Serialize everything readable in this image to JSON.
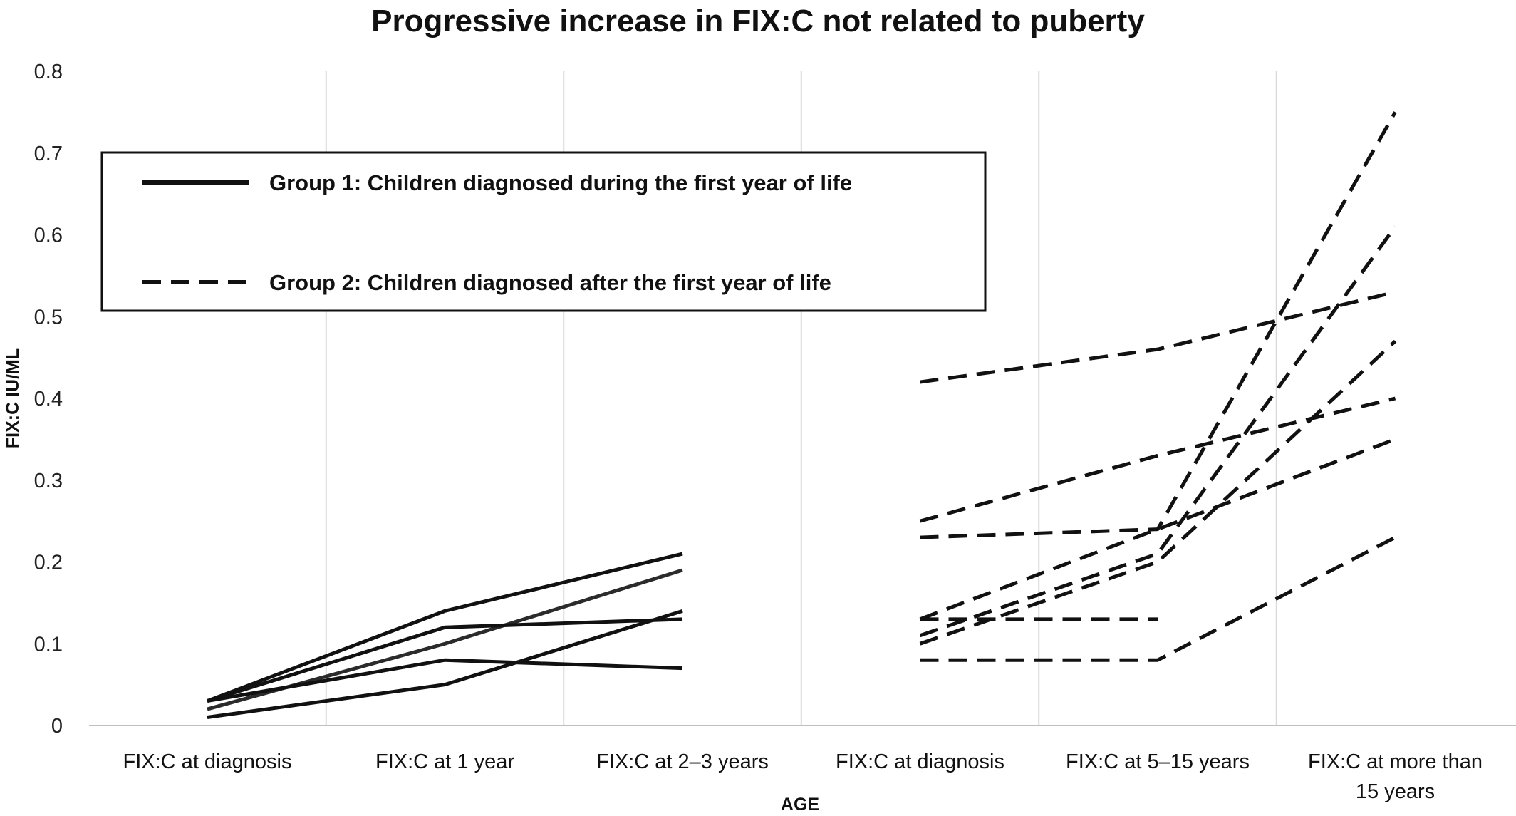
{
  "chart_data": {
    "type": "line",
    "title": "Progressive increase in FIX:C not related to puberty",
    "xlabel": "AGE",
    "ylabel": "FIX:C IU/ML",
    "ylim": [
      0,
      0.8
    ],
    "yticks": [
      "0",
      "0.1",
      "0.2",
      "0.3",
      "0.4",
      "0.5",
      "0.6",
      "0.7",
      "0.8"
    ],
    "categories": [
      "FIX:C at diagnosis",
      "FIX:C at 1 year",
      "FIX:C at 2–3 years",
      "FIX:C at diagnosis",
      "FIX:C at 5–15 years",
      "FIX:C at more than 15 years"
    ],
    "category_lines": [
      [
        "FIX:C at diagnosis"
      ],
      [
        "FIX:C at 1 year"
      ],
      [
        "FIX:C at 2–3 years"
      ],
      [
        "FIX:C at diagnosis"
      ],
      [
        "FIX:C at 5–15 years"
      ],
      [
        "FIX:C at more than",
        "15 years"
      ]
    ],
    "grid": "vertical",
    "legend_position": "top-left",
    "legend": [
      {
        "label": "Group 1: Children diagnosed during the first year of life",
        "style": "solid"
      },
      {
        "label": "Group 2: Children diagnosed after the first year of life",
        "style": "dashed"
      }
    ],
    "groups": [
      {
        "name": "Group 1: Children diagnosed during the first year of life",
        "style": "solid",
        "category_indices": [
          0,
          1,
          2
        ],
        "series": [
          {
            "values": [
              0.03,
              0.14,
              0.21
            ],
            "color": "#111111"
          },
          {
            "values": [
              0.02,
              0.1,
              0.19
            ],
            "color": "#2b2b2b"
          },
          {
            "values": [
              0.03,
              0.12,
              0.13
            ],
            "color": "#111111"
          },
          {
            "values": [
              0.03,
              0.08,
              0.07
            ],
            "color": "#111111"
          },
          {
            "values": [
              0.01,
              0.05,
              0.14
            ],
            "color": "#111111"
          }
        ]
      },
      {
        "name": "Group 2: Children diagnosed after the first year of life",
        "style": "dashed",
        "category_indices": [
          3,
          4,
          5
        ],
        "series": [
          {
            "values": [
              0.42,
              0.46,
              0.53
            ],
            "color": "#111111"
          },
          {
            "values": [
              0.25,
              0.33,
              0.4
            ],
            "color": "#111111"
          },
          {
            "values": [
              0.23,
              0.24,
              0.75
            ],
            "color": "#111111"
          },
          {
            "values": [
              0.13,
              0.24,
              0.35
            ],
            "color": "#111111"
          },
          {
            "values": [
              0.11,
              0.21,
              0.61
            ],
            "color": "#111111"
          },
          {
            "values": [
              0.1,
              0.2,
              0.47
            ],
            "color": "#111111"
          },
          {
            "values": [
              0.13,
              0.13,
              null
            ],
            "color": "#111111"
          },
          {
            "values": [
              0.08,
              0.08,
              0.23
            ],
            "color": "#111111"
          }
        ]
      }
    ]
  }
}
